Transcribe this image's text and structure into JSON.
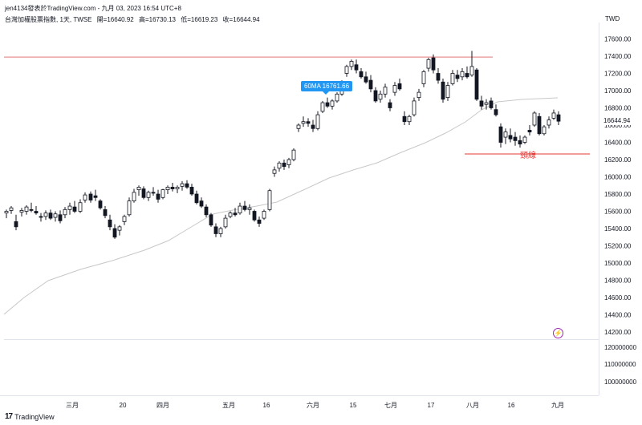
{
  "header": {
    "author": "jen4134發表於TradingView.com - 九月 03, 2023 16:54 UTC+8",
    "symbol": "台灣加權股票指數, 1天, TWSE",
    "open": "開=16640.92",
    "high": "高=16730.13",
    "low": "低=16619.23",
    "close": "收=16644.94",
    "currency": "TWD"
  },
  "annotations": {
    "ma_tag": "60MA 16761.66",
    "neckline_label": "頸線",
    "last_price": "16644.94"
  },
  "footer": {
    "logo_text": "TradingView"
  },
  "colors": {
    "resistance_line": "#e57373",
    "neckline": "#e53935",
    "ma_line": "#c8c8c8",
    "candle": "#131722",
    "ma_tag": "#2196f3",
    "alert_icon": "#9c27b0"
  },
  "icons": {
    "alert": "lightning-icon"
  },
  "chart_data": {
    "type": "candlestick",
    "price_axis": {
      "ticks": [
        17600,
        17400,
        17200,
        17000,
        16800,
        16600,
        16400,
        16200,
        16000,
        15800,
        15600,
        15400,
        15200,
        15000,
        14800,
        14600,
        14400,
        14200
      ],
      "tick_labels": [
        "17600.00",
        "17400.00",
        "17200.00",
        "17000.00",
        "16800.00",
        "16600.00",
        "16400.00",
        "16200.00",
        "16000.00",
        "15800.00",
        "15600.00",
        "15400.00",
        "15200.00",
        "15000.00",
        "14800.00",
        "14600.00",
        "14400.00",
        "14200.00"
      ],
      "range": [
        14100,
        17700
      ]
    },
    "volume_axis": {
      "tick_labels": [
        "120000000",
        "110000000",
        "100000000"
      ]
    },
    "x_axis": {
      "labels": [
        "三月",
        "20",
        "四月",
        "五月",
        "16",
        "六月",
        "15",
        "七月",
        "17",
        "八月",
        "16",
        "九月"
      ]
    },
    "horizontal_lines": [
      {
        "name": "resistance",
        "price": 17390
      },
      {
        "name": "neckline",
        "price": 16265
      }
    ],
    "ma": {
      "name": "60MA",
      "value": 16761.66
    },
    "last_close": 16644.94
  }
}
